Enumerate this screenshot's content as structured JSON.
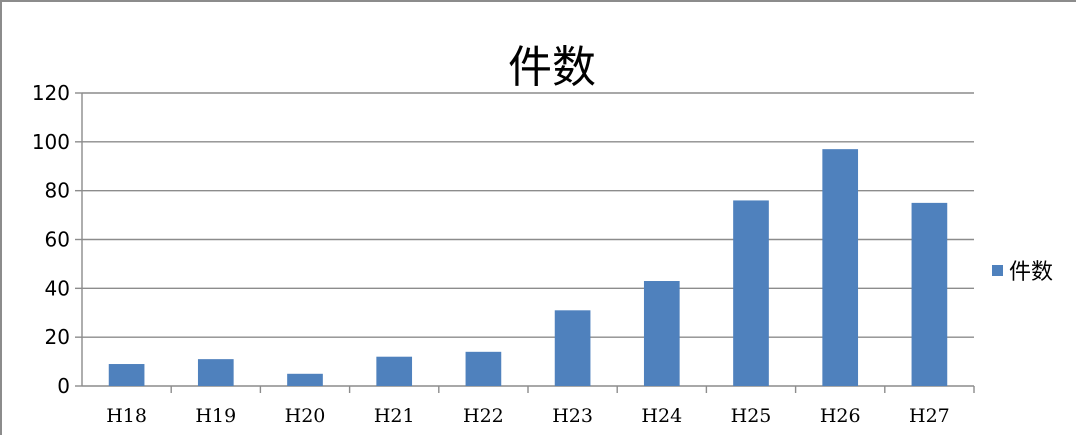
{
  "chart_data": {
    "type": "bar",
    "title": "件数",
    "xlabel": "",
    "ylabel": "",
    "categories": [
      "H18",
      "H19",
      "H20",
      "H21",
      "H22",
      "H23",
      "H24",
      "H25",
      "H26",
      "H27"
    ],
    "series": [
      {
        "name": "件数",
        "values": [
          9,
          11,
          5,
          12,
          14,
          31,
          43,
          76,
          97,
          75
        ],
        "color": "#4f81bd"
      }
    ],
    "ylim": [
      0,
      120
    ],
    "yticks": [
      "0",
      "20",
      "40",
      "60",
      "80",
      "100",
      "120"
    ],
    "grid": true,
    "legend_position": "right"
  }
}
